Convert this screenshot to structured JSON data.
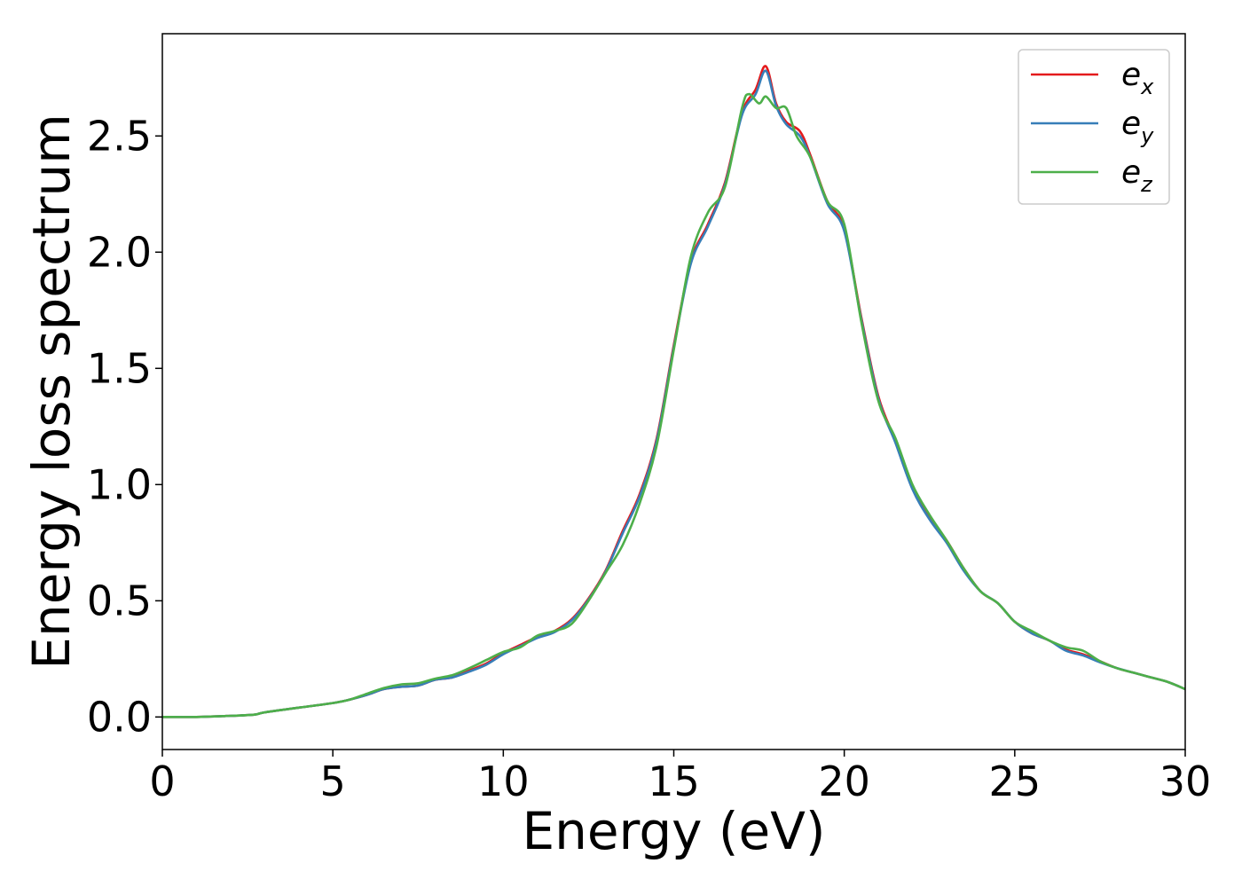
{
  "chart_data": {
    "type": "line",
    "xlabel": "Energy (eV)",
    "ylabel": "Energy loss spectrum",
    "xlim": [
      0,
      30
    ],
    "ylim": [
      -0.14,
      2.94
    ],
    "xticks": [
      "0",
      "5",
      "10",
      "15",
      "20",
      "25",
      "30"
    ],
    "yticks": [
      "0.0",
      "0.5",
      "1.0",
      "1.5",
      "2.0",
      "2.5"
    ],
    "grid": false,
    "legend_position": "top-right",
    "series": [
      {
        "name_base": "e",
        "name_sub": "x",
        "color": "#e41a1c",
        "x": [
          0,
          1,
          2,
          2.7,
          3,
          4,
          5,
          5.5,
          6,
          6.5,
          7,
          7.5,
          8,
          8.5,
          9,
          9.5,
          10,
          10.5,
          11,
          11.5,
          12,
          12.5,
          13,
          13.5,
          14,
          14.5,
          15,
          15.5,
          16,
          16.5,
          17,
          17.4,
          17.7,
          18,
          18.3,
          18.7,
          19,
          19.5,
          20,
          20.5,
          21,
          21.5,
          22,
          22.5,
          23,
          23.5,
          24,
          24.5,
          25,
          25.5,
          26,
          26.5,
          27,
          27.5,
          28,
          28.5,
          29,
          29.5,
          30
        ],
        "y": [
          0.0,
          0.0,
          0.005,
          0.01,
          0.02,
          0.04,
          0.06,
          0.075,
          0.095,
          0.12,
          0.13,
          0.135,
          0.16,
          0.17,
          0.2,
          0.23,
          0.275,
          0.31,
          0.345,
          0.37,
          0.42,
          0.51,
          0.63,
          0.8,
          0.96,
          1.2,
          1.6,
          1.96,
          2.12,
          2.3,
          2.6,
          2.7,
          2.8,
          2.64,
          2.56,
          2.52,
          2.42,
          2.22,
          2.1,
          1.72,
          1.38,
          1.19,
          0.99,
          0.86,
          0.76,
          0.64,
          0.54,
          0.49,
          0.41,
          0.36,
          0.33,
          0.29,
          0.27,
          0.24,
          0.21,
          0.19,
          0.17,
          0.15,
          0.12
        ]
      },
      {
        "name_base": "e",
        "name_sub": "y",
        "color": "#377eb8",
        "x": [
          0,
          1,
          2,
          2.7,
          3,
          4,
          5,
          5.5,
          6,
          6.5,
          7,
          7.5,
          8,
          8.5,
          9,
          9.5,
          10,
          10.5,
          11,
          11.5,
          12,
          12.5,
          13,
          13.5,
          14,
          14.5,
          15,
          15.5,
          16,
          16.5,
          17,
          17.4,
          17.7,
          18,
          18.3,
          18.7,
          19,
          19.5,
          20,
          20.5,
          21,
          21.5,
          22,
          22.5,
          23,
          23.5,
          24,
          24.5,
          25,
          25.5,
          26,
          26.5,
          27,
          27.5,
          28,
          28.5,
          29,
          29.5,
          30
        ],
        "y": [
          0.0,
          0.0,
          0.005,
          0.01,
          0.02,
          0.04,
          0.06,
          0.075,
          0.095,
          0.12,
          0.13,
          0.135,
          0.16,
          0.17,
          0.195,
          0.225,
          0.27,
          0.305,
          0.34,
          0.365,
          0.415,
          0.505,
          0.625,
          0.79,
          0.95,
          1.19,
          1.59,
          1.95,
          2.11,
          2.29,
          2.59,
          2.68,
          2.78,
          2.63,
          2.55,
          2.5,
          2.41,
          2.21,
          2.09,
          1.71,
          1.37,
          1.18,
          0.98,
          0.85,
          0.75,
          0.63,
          0.54,
          0.49,
          0.41,
          0.36,
          0.33,
          0.285,
          0.265,
          0.235,
          0.21,
          0.19,
          0.17,
          0.15,
          0.12
        ]
      },
      {
        "name_base": "e",
        "name_sub": "z",
        "color": "#4daf4a",
        "x": [
          0,
          1,
          2,
          2.7,
          3,
          4,
          5,
          5.5,
          6,
          6.5,
          7,
          7.5,
          8,
          8.5,
          9,
          9.5,
          10,
          10.5,
          11,
          11.5,
          12,
          12.5,
          13,
          13.5,
          14,
          14.5,
          15,
          15.5,
          16,
          16.5,
          17,
          17.2,
          17.5,
          17.7,
          18,
          18.3,
          18.6,
          19,
          19.5,
          20,
          20.5,
          21,
          21.5,
          22,
          22.5,
          23,
          23.5,
          24,
          24.5,
          25,
          25.5,
          26,
          26.5,
          27,
          27.5,
          28,
          28.5,
          29,
          29.5,
          30
        ],
        "y": [
          0.0,
          0.0,
          0.005,
          0.01,
          0.02,
          0.04,
          0.06,
          0.075,
          0.1,
          0.125,
          0.14,
          0.145,
          0.165,
          0.18,
          0.21,
          0.245,
          0.28,
          0.3,
          0.35,
          0.37,
          0.4,
          0.5,
          0.62,
          0.74,
          0.92,
          1.17,
          1.58,
          1.98,
          2.17,
          2.28,
          2.62,
          2.68,
          2.64,
          2.67,
          2.62,
          2.62,
          2.5,
          2.41,
          2.22,
          2.12,
          1.7,
          1.36,
          1.2,
          1.0,
          0.87,
          0.76,
          0.64,
          0.54,
          0.49,
          0.41,
          0.37,
          0.33,
          0.3,
          0.285,
          0.24,
          0.21,
          0.19,
          0.17,
          0.15,
          0.12
        ]
      }
    ]
  }
}
